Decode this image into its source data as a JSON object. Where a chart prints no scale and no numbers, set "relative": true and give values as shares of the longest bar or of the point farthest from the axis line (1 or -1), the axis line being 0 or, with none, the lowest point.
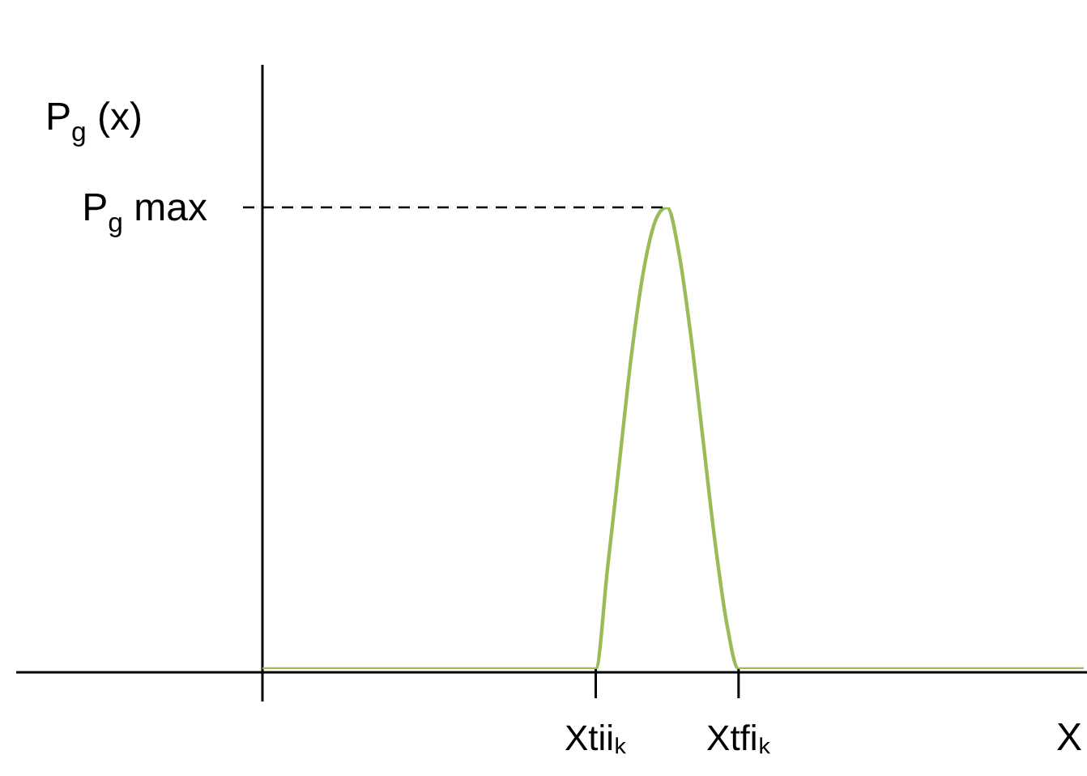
{
  "chart_data": {
    "type": "line",
    "relative": true,
    "ylabel": "P$_{g}$ (x)",
    "xlabel": "X",
    "color": "#9bbb59",
    "marker": "none",
    "line_style": "solid",
    "legend": false,
    "categories": [
      null,
      null,
      null,
      null,
      null,
      null,
      null,
      null,
      null,
      null,
      null,
      null,
      null,
      null,
      null,
      null,
      null,
      null,
      null,
      null,
      null,
      null,
      null,
      null,
      null,
      null,
      null,
      null,
      "Xtiiₖ",
      null,
      null,
      null,
      null,
      null,
      null,
      null,
      null,
      null,
      null,
      null,
      "Xtfiₖ",
      null,
      null,
      null,
      null,
      null,
      null,
      null,
      null,
      null,
      null,
      null,
      null,
      null,
      null,
      null,
      null,
      null,
      null,
      null,
      null,
      null,
      null,
      null,
      null,
      null,
      null,
      null,
      null,
      null
    ],
    "values": [
      0,
      0,
      0,
      0,
      0,
      0,
      0,
      0,
      0,
      0,
      0,
      0,
      0,
      0,
      0,
      0,
      0,
      0,
      0,
      0,
      0,
      0,
      0,
      0,
      0,
      0,
      0,
      0,
      0,
      0.22,
      0.45,
      0.68,
      0.86,
      0.97,
      1,
      0.9,
      0.72,
      0.5,
      0.28,
      0.1,
      0,
      0,
      0,
      0,
      0,
      0,
      0,
      0,
      0,
      0,
      0,
      0,
      0,
      0,
      0,
      0,
      0,
      0,
      0,
      0,
      0,
      0,
      0,
      0,
      0,
      0,
      0,
      0,
      0,
      0
    ],
    "ref_lines": [
      {
        "axis": "y",
        "value": 1,
        "label": "P$_{g}$ max",
        "line_style": "dashed",
        "color": "#000000"
      }
    ]
  }
}
